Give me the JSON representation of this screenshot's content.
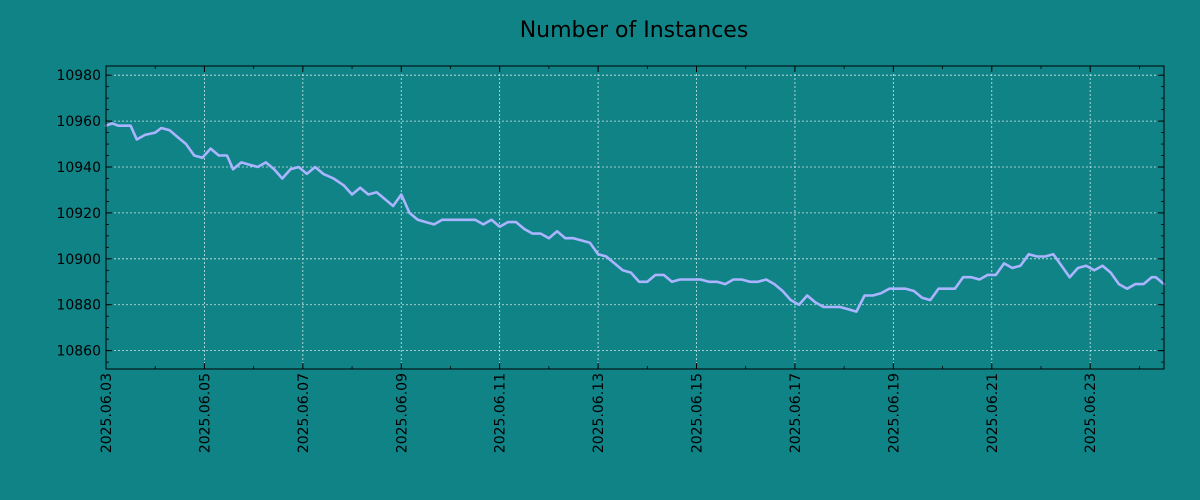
{
  "colors": {
    "background": "#108387",
    "line": "#aab4ff",
    "grid": "#cfe7e7",
    "axes": "#000000"
  },
  "chart_data": {
    "type": "line",
    "title": "Number of Instances",
    "xlabel": "",
    "ylabel": "",
    "grid": true,
    "xlim": [
      "2025-06-03",
      "2025-06-24 12:00"
    ],
    "ylim": [
      10852,
      10984
    ],
    "y_ticks": [
      10860,
      10880,
      10900,
      10920,
      10940,
      10960,
      10980
    ],
    "x_ticks": [
      "2025.06.03",
      "2025.06.05",
      "2025.06.07",
      "2025.06.09",
      "2025.06.11",
      "2025.06.13",
      "2025.06.15",
      "2025.06.17",
      "2025.06.19",
      "2025.06.21",
      "2025.06.23"
    ],
    "series": [
      {
        "points": [
          [
            "2025-06-03 00:00",
            10958
          ],
          [
            "2025-06-03 03:00",
            10959
          ],
          [
            "2025-06-03 06:00",
            10958
          ],
          [
            "2025-06-03 12:00",
            10958
          ],
          [
            "2025-06-03 15:00",
            10952
          ],
          [
            "2025-06-03 19:00",
            10954
          ],
          [
            "2025-06-04 00:00",
            10955
          ],
          [
            "2025-06-04 03:00",
            10957
          ],
          [
            "2025-06-04 07:00",
            10956
          ],
          [
            "2025-06-04 11:00",
            10953
          ],
          [
            "2025-06-04 15:00",
            10950
          ],
          [
            "2025-06-04 19:00",
            10945
          ],
          [
            "2025-06-04 23:00",
            10944
          ],
          [
            "2025-06-05 03:00",
            10948
          ],
          [
            "2025-06-05 07:00",
            10945
          ],
          [
            "2025-06-05 11:00",
            10945
          ],
          [
            "2025-06-05 14:00",
            10939
          ],
          [
            "2025-06-05 18:00",
            10942
          ],
          [
            "2025-06-05 22:00",
            10941
          ],
          [
            "2025-06-06 02:00",
            10940
          ],
          [
            "2025-06-06 06:00",
            10942
          ],
          [
            "2025-06-06 10:00",
            10939
          ],
          [
            "2025-06-06 14:00",
            10935
          ],
          [
            "2025-06-06 18:00",
            10939
          ],
          [
            "2025-06-06 22:00",
            10940
          ],
          [
            "2025-06-07 02:00",
            10937
          ],
          [
            "2025-06-07 06:00",
            10940
          ],
          [
            "2025-06-07 10:00",
            10937
          ],
          [
            "2025-06-07 15:00",
            10935
          ],
          [
            "2025-06-07 20:00",
            10932
          ],
          [
            "2025-06-08 00:00",
            10928
          ],
          [
            "2025-06-08 04:00",
            10931
          ],
          [
            "2025-06-08 08:00",
            10928
          ],
          [
            "2025-06-08 12:00",
            10929
          ],
          [
            "2025-06-08 16:00",
            10926
          ],
          [
            "2025-06-08 20:00",
            10923
          ],
          [
            "2025-06-09 00:00",
            10928
          ],
          [
            "2025-06-09 04:00",
            10920
          ],
          [
            "2025-06-09 08:00",
            10917
          ],
          [
            "2025-06-09 12:00",
            10916
          ],
          [
            "2025-06-09 16:00",
            10915
          ],
          [
            "2025-06-09 20:00",
            10917
          ],
          [
            "2025-06-10 02:00",
            10917
          ],
          [
            "2025-06-10 08:00",
            10917
          ],
          [
            "2025-06-10 12:00",
            10917
          ],
          [
            "2025-06-10 16:00",
            10915
          ],
          [
            "2025-06-10 20:00",
            10917
          ],
          [
            "2025-06-11 00:00",
            10914
          ],
          [
            "2025-06-11 04:00",
            10916
          ],
          [
            "2025-06-11 08:00",
            10916
          ],
          [
            "2025-06-11 12:00",
            10913
          ],
          [
            "2025-06-11 16:00",
            10911
          ],
          [
            "2025-06-11 20:00",
            10911
          ],
          [
            "2025-06-12 00:00",
            10909
          ],
          [
            "2025-06-12 04:00",
            10912
          ],
          [
            "2025-06-12 08:00",
            10909
          ],
          [
            "2025-06-12 12:00",
            10909
          ],
          [
            "2025-06-12 16:00",
            10908
          ],
          [
            "2025-06-12 20:00",
            10907
          ],
          [
            "2025-06-13 00:00",
            10902
          ],
          [
            "2025-06-13 04:00",
            10901
          ],
          [
            "2025-06-13 08:00",
            10898
          ],
          [
            "2025-06-13 12:00",
            10895
          ],
          [
            "2025-06-13 16:00",
            10894
          ],
          [
            "2025-06-13 20:00",
            10890
          ],
          [
            "2025-06-14 00:00",
            10890
          ],
          [
            "2025-06-14 04:00",
            10893
          ],
          [
            "2025-06-14 08:00",
            10893
          ],
          [
            "2025-06-14 12:00",
            10890
          ],
          [
            "2025-06-14 16:00",
            10891
          ],
          [
            "2025-06-14 22:00",
            10891
          ],
          [
            "2025-06-15 02:00",
            10891
          ],
          [
            "2025-06-15 06:00",
            10890
          ],
          [
            "2025-06-15 10:00",
            10890
          ],
          [
            "2025-06-15 14:00",
            10889
          ],
          [
            "2025-06-15 18:00",
            10891
          ],
          [
            "2025-06-15 22:00",
            10891
          ],
          [
            "2025-06-16 02:00",
            10890
          ],
          [
            "2025-06-16 06:00",
            10890
          ],
          [
            "2025-06-16 10:00",
            10891
          ],
          [
            "2025-06-16 14:00",
            10889
          ],
          [
            "2025-06-16 18:00",
            10886
          ],
          [
            "2025-06-16 22:00",
            10882
          ],
          [
            "2025-06-17 02:00",
            10880
          ],
          [
            "2025-06-17 06:00",
            10884
          ],
          [
            "2025-06-17 10:00",
            10881
          ],
          [
            "2025-06-17 14:00",
            10879
          ],
          [
            "2025-06-17 18:00",
            10879
          ],
          [
            "2025-06-17 22:00",
            10879
          ],
          [
            "2025-06-18 02:00",
            10878
          ],
          [
            "2025-06-18 06:00",
            10877
          ],
          [
            "2025-06-18 10:00",
            10884
          ],
          [
            "2025-06-18 14:00",
            10884
          ],
          [
            "2025-06-18 18:00",
            10885
          ],
          [
            "2025-06-18 22:00",
            10887
          ],
          [
            "2025-06-19 02:00",
            10887
          ],
          [
            "2025-06-19 06:00",
            10887
          ],
          [
            "2025-06-19 10:00",
            10886
          ],
          [
            "2025-06-19 14:00",
            10883
          ],
          [
            "2025-06-19 18:00",
            10882
          ],
          [
            "2025-06-19 22:00",
            10887
          ],
          [
            "2025-06-20 02:00",
            10887
          ],
          [
            "2025-06-20 06:00",
            10887
          ],
          [
            "2025-06-20 10:00",
            10892
          ],
          [
            "2025-06-20 14:00",
            10892
          ],
          [
            "2025-06-20 18:00",
            10891
          ],
          [
            "2025-06-20 22:00",
            10893
          ],
          [
            "2025-06-21 02:00",
            10893
          ],
          [
            "2025-06-21 06:00",
            10898
          ],
          [
            "2025-06-21 10:00",
            10896
          ],
          [
            "2025-06-21 14:00",
            10897
          ],
          [
            "2025-06-21 18:00",
            10902
          ],
          [
            "2025-06-21 22:00",
            10901
          ],
          [
            "2025-06-22 02:00",
            10901
          ],
          [
            "2025-06-22 06:00",
            10902
          ],
          [
            "2025-06-22 10:00",
            10897
          ],
          [
            "2025-06-22 14:00",
            10892
          ],
          [
            "2025-06-22 18:00",
            10896
          ],
          [
            "2025-06-22 22:00",
            10897
          ],
          [
            "2025-06-23 02:00",
            10895
          ],
          [
            "2025-06-23 06:00",
            10897
          ],
          [
            "2025-06-23 10:00",
            10894
          ],
          [
            "2025-06-23 14:00",
            10889
          ],
          [
            "2025-06-23 18:00",
            10887
          ],
          [
            "2025-06-23 22:00",
            10889
          ],
          [
            "2025-06-24 02:00",
            10889
          ],
          [
            "2025-06-24 06:00",
            10892
          ],
          [
            "2025-06-24 08:00",
            10892
          ],
          [
            "2025-06-24 12:00",
            10889
          ]
        ]
      }
    ]
  }
}
